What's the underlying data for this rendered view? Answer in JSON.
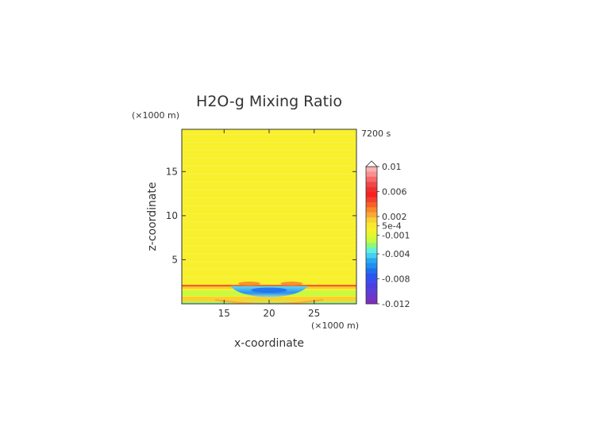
{
  "chart_data": {
    "type": "heatmap",
    "title": "H2O-g Mixing Ratio",
    "time_label": "7200 s",
    "xlabel": "x-coordinate",
    "ylabel": "z-coordinate",
    "x_unit": "(×1000 m)",
    "y_unit": "(×1000 m)",
    "xlim": [
      10.3,
      29.7
    ],
    "ylim": [
      0,
      19.8
    ],
    "x_ticks": [
      15,
      20,
      25
    ],
    "y_ticks": [
      5,
      10,
      15
    ],
    "grid": false,
    "colorbar": {
      "range": [
        -0.012,
        0.01
      ],
      "labels": [
        "0.01",
        "0.006",
        "0.002",
        "5e-4",
        "-0.001",
        "-0.004",
        "-0.008",
        "-0.012"
      ],
      "label_values": [
        0.01,
        0.006,
        0.002,
        0.0005,
        -0.001,
        -0.004,
        -0.008,
        -0.012
      ],
      "extend": "max"
    },
    "field": {
      "background_value": 0.0006,
      "background_color": "#f8f02c",
      "features": [
        {
          "name": "layer-line",
          "z": 2.05,
          "thickness": 0.22,
          "value": 0.0025
        },
        {
          "name": "lower-band-a",
          "z": 1.2,
          "thickness": 0.6,
          "value": -0.0008
        },
        {
          "name": "lower-band-b",
          "z": 0.55,
          "thickness": 0.5,
          "value": 0.0009
        },
        {
          "name": "ground-band",
          "z": 0.12,
          "thickness": 0.25,
          "value": -0.0011
        },
        {
          "name": "central-anomaly",
          "x_center": 20,
          "x_half_width": 4.3,
          "z_top": 2.0,
          "z_bottom": 0.9,
          "value": -0.004
        },
        {
          "name": "central-core",
          "x_center": 20,
          "x_half_width": 2.0,
          "z_top": 1.85,
          "z_bottom": 1.25,
          "value": -0.006
        },
        {
          "name": "orange-bump-left",
          "x_center": 17.8,
          "z": 2.3,
          "value": 0.002
        },
        {
          "name": "orange-bump-right",
          "x_center": 22.5,
          "z": 2.3,
          "value": 0.002
        },
        {
          "name": "orange-arc",
          "x_center": 20,
          "x_half_width": 6.0,
          "z": 0.45,
          "value": 0.0015
        }
      ]
    }
  }
}
